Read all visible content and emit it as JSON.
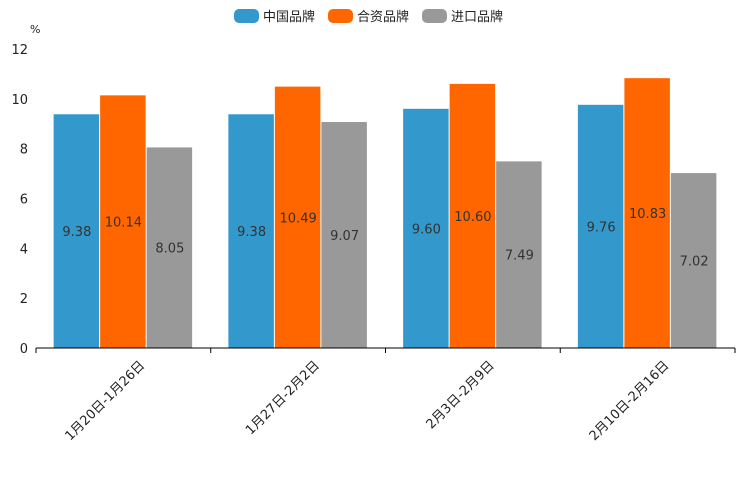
{
  "chart_data": {
    "type": "bar",
    "title": "",
    "xlabel": "",
    "ylabel": "%",
    "ylim": [
      0,
      12
    ],
    "yticks": [
      0,
      2,
      4,
      6,
      8,
      10,
      12
    ],
    "categories": [
      "1月20日-1月26日",
      "1月27日-2月2日",
      "2月3日-2月9日",
      "2月10日-2月16日"
    ],
    "series": [
      {
        "name": "中国品牌",
        "color": "#3399cc",
        "values": [
          9.38,
          9.38,
          9.6,
          9.76
        ],
        "labels": [
          "9.38",
          "9.38",
          "9.60",
          "9.76"
        ]
      },
      {
        "name": "合资品牌",
        "color": "#ff6600",
        "values": [
          10.14,
          10.49,
          10.6,
          10.83
        ],
        "labels": [
          "10.14",
          "10.49",
          "10.60",
          "10.83"
        ]
      },
      {
        "name": "进口品牌",
        "color": "#999999",
        "values": [
          8.05,
          9.07,
          7.49,
          7.02
        ],
        "labels": [
          "8.05",
          "9.07",
          "7.49",
          "7.02"
        ]
      }
    ],
    "legend_position": "top-center",
    "grid": false
  }
}
